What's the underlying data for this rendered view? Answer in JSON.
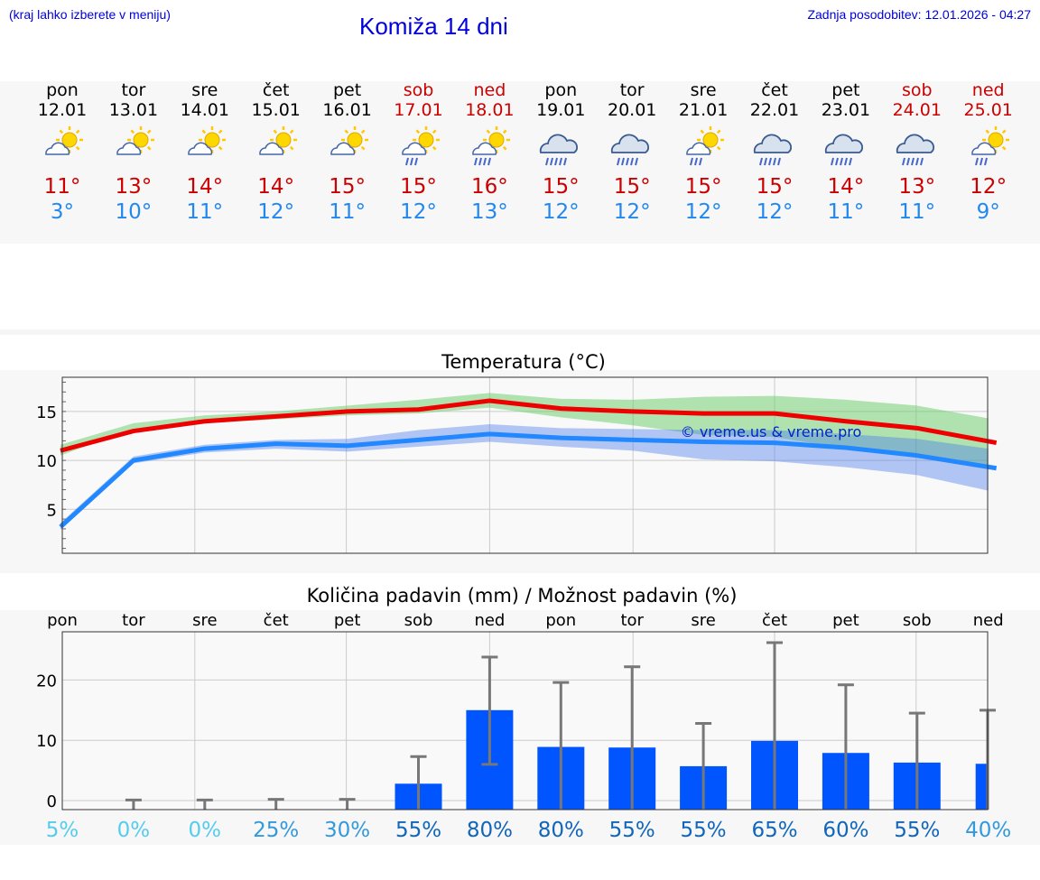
{
  "header": {
    "hint": "(kraj lahko izberete v meniju)",
    "title": "Komiža 14 dni",
    "updated": "Zadnja posodobitev: 12.01.2026 - 04:27"
  },
  "colors": {
    "accent": "#0000dd",
    "tmax": "#cc0000",
    "tmin": "#2288ee",
    "bar": "#0055ff"
  },
  "days": [
    {
      "dow": "pon",
      "date": "12.01",
      "weekend": false,
      "icon": "sun-cloud-icon",
      "tmax": "11°",
      "tmin": "3°"
    },
    {
      "dow": "tor",
      "date": "13.01",
      "weekend": false,
      "icon": "sun-cloud-icon",
      "tmax": "13°",
      "tmin": "10°"
    },
    {
      "dow": "sre",
      "date": "14.01",
      "weekend": false,
      "icon": "sun-cloud-icon",
      "tmax": "14°",
      "tmin": "11°"
    },
    {
      "dow": "čet",
      "date": "15.01",
      "weekend": false,
      "icon": "sun-cloud-icon",
      "tmax": "14°",
      "tmin": "12°"
    },
    {
      "dow": "pet",
      "date": "16.01",
      "weekend": false,
      "icon": "sun-cloud-icon",
      "tmax": "15°",
      "tmin": "11°"
    },
    {
      "dow": "sob",
      "date": "17.01",
      "weekend": true,
      "icon": "sun-cloud-rain-icon",
      "tmax": "15°",
      "tmin": "12°"
    },
    {
      "dow": "ned",
      "date": "18.01",
      "weekend": true,
      "icon": "sun-cloud-heavy-rain-icon",
      "tmax": "16°",
      "tmin": "13°"
    },
    {
      "dow": "pon",
      "date": "19.01",
      "weekend": false,
      "icon": "cloud-rain-icon",
      "tmax": "15°",
      "tmin": "12°"
    },
    {
      "dow": "tor",
      "date": "20.01",
      "weekend": false,
      "icon": "cloud-rain-icon",
      "tmax": "15°",
      "tmin": "12°"
    },
    {
      "dow": "sre",
      "date": "21.01",
      "weekend": false,
      "icon": "sun-cloud-rain-icon",
      "tmax": "15°",
      "tmin": "12°"
    },
    {
      "dow": "čet",
      "date": "22.01",
      "weekend": false,
      "icon": "cloud-rain-icon",
      "tmax": "15°",
      "tmin": "12°"
    },
    {
      "dow": "pet",
      "date": "23.01",
      "weekend": false,
      "icon": "cloud-rain-icon",
      "tmax": "14°",
      "tmin": "11°"
    },
    {
      "dow": "sob",
      "date": "24.01",
      "weekend": true,
      "icon": "cloud-rain-icon",
      "tmax": "13°",
      "tmin": "11°"
    },
    {
      "dow": "ned",
      "date": "25.01",
      "weekend": true,
      "icon": "sun-cloud-rain-icon",
      "tmax": "12°",
      "tmin": "9°"
    }
  ],
  "chart_data": [
    {
      "type": "line",
      "title": "Temperatura (°C)",
      "categories": [
        "pon",
        "tor",
        "sre",
        "čet",
        "pet",
        "sob",
        "ned",
        "pon",
        "tor",
        "sre",
        "čet",
        "pet",
        "sob",
        "ned"
      ],
      "yticks": [
        5,
        10,
        15
      ],
      "ylim": [
        0.5,
        18.5
      ],
      "series": [
        {
          "name": "max",
          "values": [
            11,
            13,
            14,
            14.5,
            15,
            15.2,
            16.1,
            15.3,
            15,
            14.8,
            14.8,
            14,
            13.3,
            11.8
          ],
          "band_low": [
            10.5,
            13.2,
            13.8,
            14.2,
            14.6,
            14.8,
            15.4,
            14.4,
            13.6,
            12.6,
            12.4,
            11.2,
            10.4,
            9.4
          ],
          "band_high": [
            11.6,
            13.8,
            14.6,
            15,
            15.6,
            16.2,
            16.9,
            16.3,
            16.2,
            16.5,
            16.6,
            16.2,
            15.6,
            14.3
          ]
        },
        {
          "name": "min",
          "values": [
            3.2,
            10,
            11.2,
            11.7,
            11.5,
            12.1,
            12.7,
            12.3,
            12.1,
            11.9,
            11.8,
            11.3,
            10.5,
            9.2
          ],
          "band_low": [
            2.9,
            9.7,
            10.8,
            11.2,
            10.9,
            11.4,
            11.9,
            11.4,
            11,
            10.1,
            9.9,
            9.3,
            8.5,
            6.9
          ],
          "band_high": [
            3.6,
            10.4,
            11.6,
            12.1,
            12.2,
            13.1,
            13.7,
            13.3,
            13.2,
            13.1,
            13.1,
            12.7,
            12.2,
            11.2
          ]
        }
      ],
      "watermark": "© vreme.us & vreme.pro"
    },
    {
      "type": "bar",
      "title": "Količina padavin (mm) / Možnost padavin (%)",
      "categories": [
        "pon",
        "tor",
        "sre",
        "čet",
        "pet",
        "sob",
        "ned",
        "pon",
        "tor",
        "sre",
        "čet",
        "pet",
        "sob",
        "ned"
      ],
      "values": [
        0,
        0,
        0,
        0,
        0,
        2.8,
        15,
        8.9,
        8.8,
        5.7,
        9.9,
        7.9,
        6.3,
        6.1
      ],
      "error_low": [
        0,
        0,
        0,
        0,
        0,
        0,
        6,
        0,
        0,
        0,
        0,
        0,
        0,
        0
      ],
      "error_high": [
        0,
        0.1,
        0.1,
        0.2,
        0.2,
        7.3,
        23.8,
        19.6,
        22.2,
        12.8,
        26.2,
        19.2,
        14.5,
        15
      ],
      "yticks": [
        0,
        10,
        20
      ],
      "ylim": [
        -1.5,
        28
      ],
      "probability": [
        "5%",
        "0%",
        "0%",
        "25%",
        "30%",
        "55%",
        "80%",
        "80%",
        "55%",
        "55%",
        "65%",
        "60%",
        "55%",
        "40%"
      ],
      "probability_colors": [
        "#55ccee",
        "#55ccee",
        "#55ccee",
        "#3399dd",
        "#3399dd",
        "#1166bb",
        "#1166bb",
        "#1166bb",
        "#1166bb",
        "#1166bb",
        "#1166bb",
        "#1166bb",
        "#1166bb",
        "#3399dd"
      ]
    }
  ]
}
